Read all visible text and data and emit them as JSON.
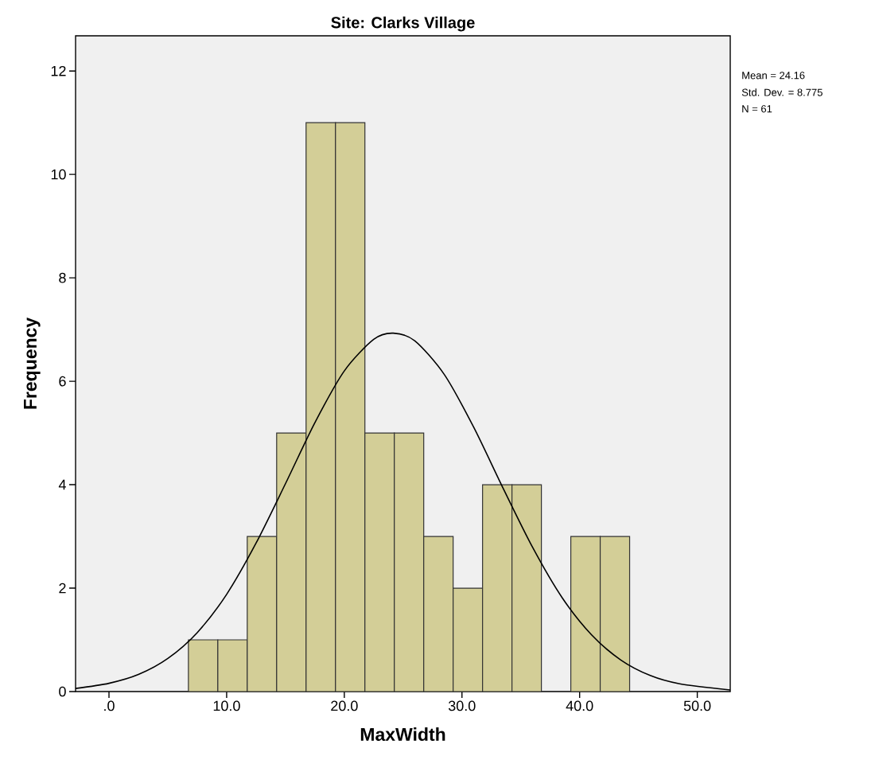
{
  "chart_data": {
    "type": "histogram",
    "title": "Site: Clarks Village",
    "xlabel": "MaxWidth",
    "ylabel": "Frequency",
    "bins": [
      6.75,
      9.25,
      11.75,
      14.25,
      16.75,
      19.25,
      21.75,
      24.25,
      26.75,
      29.25,
      31.75,
      34.25,
      36.75,
      39.25,
      41.75,
      44.25
    ],
    "values": [
      1,
      1,
      3,
      5,
      11,
      11,
      5,
      5,
      3,
      2,
      4,
      4,
      0,
      3,
      3
    ],
    "color": "#d3ce97",
    "series": [
      {
        "type": "line",
        "color": "#000000",
        "x": [
          -2.84,
          0,
          2.5,
          5,
          7.5,
          10,
          12.5,
          15,
          17.5,
          20,
          22.5,
          24.16,
          26,
          28.5,
          31,
          33.5,
          36,
          38.5,
          41,
          43.5,
          46,
          48.5,
          52.8
        ],
        "values": [
          0.06,
          0.16,
          0.33,
          0.64,
          1.14,
          1.88,
          2.87,
          4.02,
          5.2,
          6.2,
          6.81,
          6.93,
          6.78,
          6.13,
          5.11,
          3.93,
          2.79,
          1.82,
          1.1,
          0.61,
          0.31,
          0.15,
          0.03
        ]
      }
    ],
    "xlim": [
      -2.84,
      52.8
    ],
    "ylim": [
      0,
      12.68
    ],
    "xticks": [
      {
        "value": 0,
        "label": ".0"
      },
      {
        "value": 10,
        "label": "10.0"
      },
      {
        "value": 20,
        "label": "20.0"
      },
      {
        "value": 30,
        "label": "30.0"
      },
      {
        "value": 40,
        "label": "40.0"
      },
      {
        "value": 50,
        "label": "50.0"
      }
    ],
    "yticks": [
      0,
      2,
      4,
      6,
      8,
      10,
      12
    ],
    "annotations": [
      "Mean = 24.16",
      "Std. Dev. = 8.775",
      "N = 61"
    ],
    "grid": false,
    "legend": false
  }
}
